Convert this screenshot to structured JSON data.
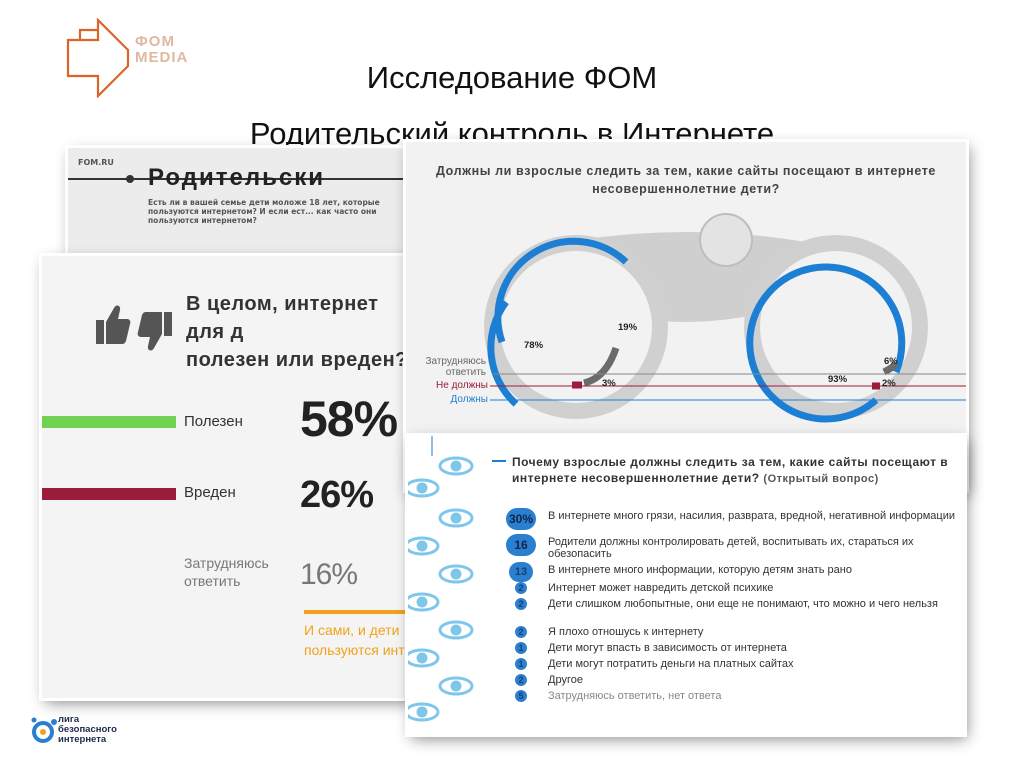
{
  "logo": {
    "line1": "ФОМ",
    "line2": "MEDIA",
    "icon": "fom-arrow-logo",
    "color": "#d9652b"
  },
  "title": {
    "line1": "Исследование ФОМ",
    "line2": "Родительский контроль в Интернете"
  },
  "back_card": {
    "site": "FOM.RU",
    "title": "Родительски",
    "question": "Есть ли в вашей семье дети моложе 18 лет, которые пользуются интернетом? И если ест... как часто они пользуются интернетом?"
  },
  "left_card": {
    "question_line1": "В целом, интернет для д",
    "question_line2": "полезен или вреден?",
    "icon": "thumbs-up-down-icon",
    "rows": [
      {
        "label": "Полезен",
        "value": "58%",
        "color": "#6fd34f",
        "fraction": 1.0
      },
      {
        "label": "Вреден",
        "value": "26%",
        "color": "#9a1b3a",
        "fraction": 1.0
      },
      {
        "label": "Затрудняюсь ответить",
        "value": "16%",
        "color": "",
        "fraction": 0
      }
    ],
    "note": "И сами, и дети пользуются инте"
  },
  "right_card": {
    "question": "Должны ли взрослые следить за тем, какие сайты посещают в интернете несовершеннолетние дети?",
    "legend": [
      "Затрудняюсь ответить",
      "Не должны",
      "Должны"
    ],
    "left_lens": {
      "should": "78%",
      "unsure": "19%",
      "should_not": "3%"
    },
    "right_lens": {
      "should": "93%",
      "unsure": "6%",
      "should_not": "2%"
    },
    "colors": {
      "should": "#1d7fd4",
      "should_not": "#9a1b3a",
      "unsure": "#6b6b6b"
    }
  },
  "bottom_card": {
    "question": "Почему взрослые должны следить за тем, какие сайты посещают в интернете несовершеннолетние дети?",
    "question_sub": "(Открытый вопрос)",
    "items": [
      {
        "value": "30%",
        "text": "В интернете много грязи, насилия, разврата, вредной, негативной информации",
        "size": "big"
      },
      {
        "value": "16",
        "text": "Родители должны контролировать детей, воспитывать их, стараться их обезопасить",
        "size": "big"
      },
      {
        "value": "13",
        "text": "В интернете много информации, которую детям знать рано",
        "size": "mid"
      },
      {
        "value": "2",
        "text": "Интернет может навредить детской психике",
        "size": "sm"
      },
      {
        "value": "2",
        "text": "Дети слишком любопытные, они еще не понимают, что можно и чего нельзя",
        "size": "sm"
      },
      {
        "value": "2",
        "text": "Я плохо отношусь к интернету",
        "size": "sm"
      },
      {
        "value": "1",
        "text": "Дети могут впасть в зависимость от интернета",
        "size": "sm"
      },
      {
        "value": "1",
        "text": "Дети могут потратить деньги на платных сайтах",
        "size": "sm"
      },
      {
        "value": "2",
        "text": "Другое",
        "size": "sm"
      },
      {
        "value": "5",
        "text": "Затрудняюсь ответить, нет ответа",
        "size": "sm"
      }
    ]
  },
  "footer_logo": {
    "line1": "лига",
    "line2": "безопасного",
    "line3": "интернета",
    "icon": "liga-logo-icon",
    "color": "#2a7fd0"
  }
}
